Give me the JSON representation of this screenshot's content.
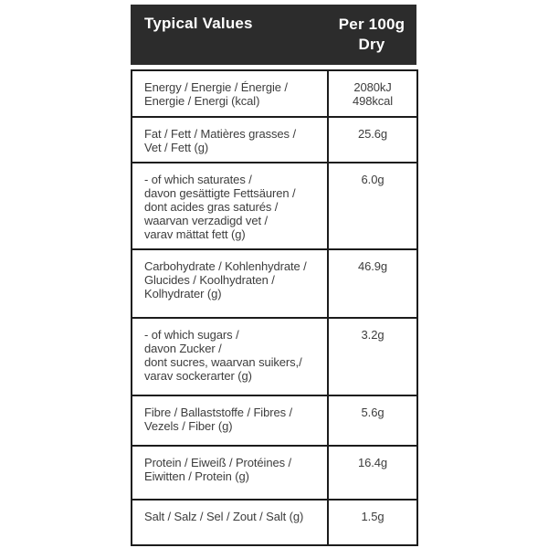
{
  "header": {
    "title": "Typical Values",
    "column": "Per 100g\nDry"
  },
  "rows": [
    {
      "id": "energy",
      "label": "Energy / Energie / Énergie /\nEnergie / Energi (kcal)",
      "value": "2080kJ\n498kcal"
    },
    {
      "id": "fat",
      "label": "Fat / Fett / Matières grasses /\nVet / Fett (g)",
      "value": "25.6g"
    },
    {
      "id": "saturates",
      "label": "- of which saturates /\ndavon gesättigte Fettsäuren /\ndont acides gras saturés /\nwaarvan verzadigd vet /\nvarav mättat fett (g)",
      "value": "6.0g"
    },
    {
      "id": "carbohydrate",
      "label": "Carbohydrate / Kohlenhydrate /\nGlucides / Koolhydraten /\nKolhydrater (g)",
      "value": "46.9g"
    },
    {
      "id": "sugars",
      "label": "- of which sugars /\ndavon Zucker /\ndont sucres, waarvan suikers,/\nvarav sockerarter (g)",
      "value": "3.2g"
    },
    {
      "id": "fibre",
      "label": "Fibre / Ballaststoffe / Fibres /\nVezels / Fiber (g)",
      "value": "5.6g"
    },
    {
      "id": "protein",
      "label": "Protein / Eiweiß / Protéines /\nEiwitten / Protein (g)",
      "value": "16.4g"
    },
    {
      "id": "salt",
      "label": "Salt / Salz / Sel / Zout / Salt (g)",
      "value": "1.5g"
    }
  ],
  "colors": {
    "header_bg": "#2c2c2c",
    "header_text": "#ffffff",
    "body_text": "#3d3d3d",
    "border": "#1c1c1c",
    "page_bg": "#ffffff"
  }
}
